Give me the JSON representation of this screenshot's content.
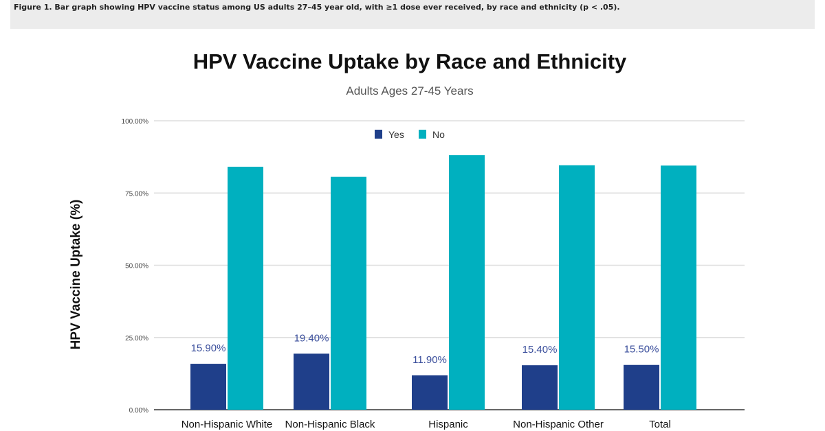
{
  "caption": "Figure 1. Bar graph showing HPV vaccine status among US adults 27–45 year old, with ≥1 dose ever received, by race and ethnicity (p < .05).",
  "chart_data": {
    "type": "bar",
    "title": "HPV Vaccine Uptake by Race and Ethnicity",
    "subtitle": "Adults Ages 27-45 Years",
    "xlabel": "",
    "ylabel": "HPV Vaccine Uptake (%)",
    "ylim": [
      0,
      100
    ],
    "yticks": [
      "0.00%",
      "25.00%",
      "50.00%",
      "75.00%",
      "100.00%"
    ],
    "grid": true,
    "legend": "top-center",
    "categories": [
      "Non-Hispanic White",
      "Non-Hispanic Black",
      "Hispanic",
      "Non-Hispanic Other",
      "Total"
    ],
    "series": [
      {
        "name": "Yes",
        "color": "#1f3f8a",
        "values": [
          15.9,
          19.4,
          11.9,
          15.4,
          15.5
        ],
        "labels": [
          "15.90%",
          "19.40%",
          "11.90%",
          "15.40%",
          "15.50%"
        ]
      },
      {
        "name": "No",
        "color": "#00b0bf",
        "values": [
          84.1,
          80.6,
          88.1,
          84.6,
          84.5
        ]
      }
    ]
  }
}
